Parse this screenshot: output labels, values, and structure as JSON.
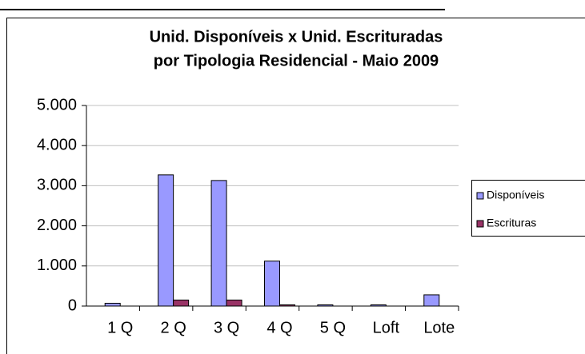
{
  "chart_data": {
    "type": "bar",
    "title": "Unid. Disponíveis x Unid. Escrituradas",
    "subtitle": "por Tipologia Residencial - Maio 2009",
    "categories": [
      "1 Q",
      "2 Q",
      "3 Q",
      "4 Q",
      "5 Q",
      "Loft",
      "Lote"
    ],
    "series": [
      {
        "name": "Disponíveis",
        "color": "#9999ff",
        "values": [
          70,
          3270,
          3130,
          1120,
          30,
          30,
          280
        ]
      },
      {
        "name": "Escrituras",
        "color": "#993366",
        "values": [
          0,
          150,
          150,
          30,
          0,
          0,
          0
        ]
      }
    ],
    "ylim": [
      0,
      5000
    ],
    "yticks": [
      0,
      {
        "value": 1000,
        "label": "1.000"
      },
      {
        "value": 2000,
        "label": "2.000"
      },
      {
        "value": 3000,
        "label": "3.000"
      },
      {
        "value": 4000,
        "label": "4.000"
      },
      {
        "value": 5000,
        "label": "5.000"
      }
    ],
    "grid": true,
    "legend": "right"
  }
}
